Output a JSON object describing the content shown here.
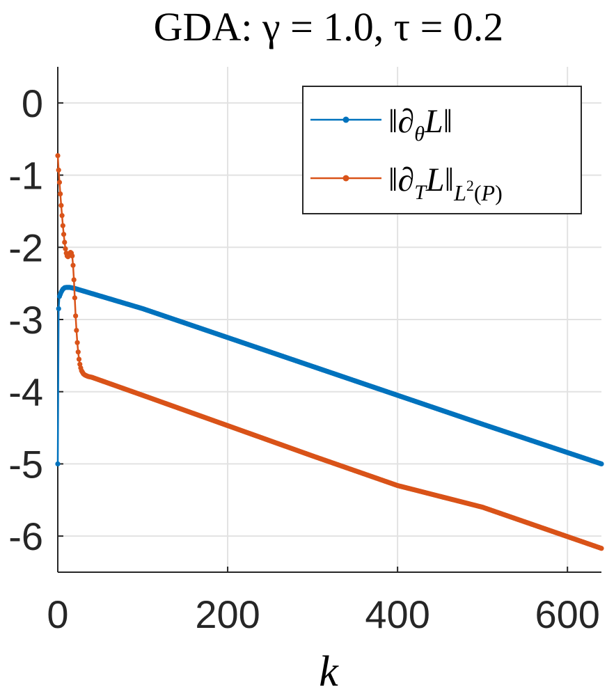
{
  "chart_data": {
    "type": "line",
    "title": "GDA: γ = 1.0, τ = 0.2",
    "xlabel": "k",
    "ylabel": "",
    "xlim": [
      0,
      640
    ],
    "ylim": [
      -6.5,
      0.5
    ],
    "xticks": [
      0,
      200,
      400,
      600
    ],
    "xtick_labels": [
      "0",
      "200",
      "400",
      "600"
    ],
    "yticks": [
      0,
      -1,
      -2,
      -3,
      -4,
      -5,
      -6
    ],
    "ytick_labels": [
      "0",
      "-1",
      "-2",
      "-3",
      "-4",
      "-5",
      "-6"
    ],
    "grid": true,
    "legend_position": "top-right",
    "series": [
      {
        "name": "||∂θL||",
        "color": "#0072BD",
        "x": [
          0,
          1,
          2,
          4,
          6,
          8,
          10,
          14,
          20,
          100,
          200,
          300,
          400,
          500,
          640
        ],
        "y": [
          -5.0,
          -2.85,
          -2.68,
          -2.62,
          -2.58,
          -2.56,
          -2.555,
          -2.555,
          -2.57,
          -2.85,
          -3.25,
          -3.65,
          -4.05,
          -4.45,
          -5.0
        ]
      },
      {
        "name": "||∂TL||L2(P)",
        "color": "#D95319",
        "x": [
          0,
          1,
          2,
          3,
          4,
          5,
          6,
          7,
          8,
          9,
          10,
          11,
          12,
          13,
          14,
          15,
          16,
          17,
          18,
          19,
          20,
          21,
          22,
          23,
          24,
          25,
          26,
          27,
          28,
          29,
          30,
          32,
          34,
          36,
          40,
          100,
          200,
          300,
          400,
          500,
          640
        ],
        "y": [
          -0.73,
          -0.93,
          -1.1,
          -1.26,
          -1.42,
          -1.56,
          -1.7,
          -1.82,
          -1.93,
          -2.02,
          -2.08,
          -2.12,
          -2.13,
          -2.11,
          -2.09,
          -2.07,
          -2.08,
          -2.12,
          -2.25,
          -2.45,
          -2.7,
          -2.95,
          -3.15,
          -3.32,
          -3.45,
          -3.55,
          -3.62,
          -3.67,
          -3.71,
          -3.73,
          -3.75,
          -3.77,
          -3.78,
          -3.79,
          -3.8,
          -4.05,
          -4.47,
          -4.89,
          -5.3,
          -5.6,
          -6.17
        ]
      }
    ]
  }
}
